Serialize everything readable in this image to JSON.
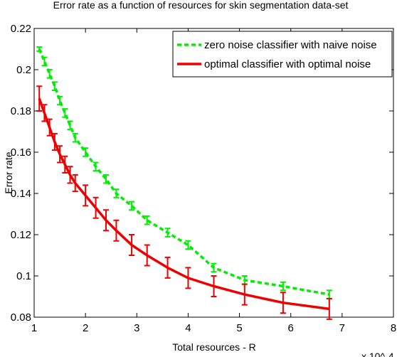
{
  "chart_data": {
    "type": "line",
    "title": "Error rate as a function of resources for skin segmentation data-set",
    "x_label": "Total resources - R",
    "y_label": "Error rate",
    "x_multiplier": "x 10^-4",
    "x": [
      1.1,
      1.2,
      1.3,
      1.4,
      1.5,
      1.6,
      1.7,
      1.8,
      2.0,
      2.2,
      2.4,
      2.6,
      2.9,
      3.2,
      3.6,
      4.0,
      4.5,
      5.1,
      5.85,
      6.75
    ],
    "series": [
      {
        "name": "zero noise classifier with naive noise",
        "color": "#00ee00",
        "dash": true,
        "values": [
          0.21,
          0.204,
          0.198,
          0.192,
          0.185,
          0.179,
          0.173,
          0.167,
          0.16,
          0.153,
          0.147,
          0.14,
          0.134,
          0.127,
          0.121,
          0.115,
          0.104,
          0.098,
          0.095,
          0.091
        ],
        "errors": [
          0.001,
          0.002,
          0.002,
          0.002,
          0.002,
          0.002,
          0.002,
          0.002,
          0.002,
          0.002,
          0.002,
          0.002,
          0.002,
          0.002,
          0.002,
          0.002,
          0.002,
          0.002,
          0.002,
          0.002
        ]
      },
      {
        "name": "optimal classifier with optimal noise",
        "color": "#ee0000",
        "dash": false,
        "values": [
          0.186,
          0.179,
          0.172,
          0.165,
          0.159,
          0.154,
          0.149,
          0.145,
          0.139,
          0.133,
          0.127,
          0.122,
          0.115,
          0.11,
          0.104,
          0.099,
          0.095,
          0.091,
          0.087,
          0.084
        ],
        "errors": [
          0.006,
          0.004,
          0.004,
          0.004,
          0.004,
          0.004,
          0.004,
          0.004,
          0.005,
          0.005,
          0.005,
          0.005,
          0.005,
          0.005,
          0.005,
          0.005,
          0.005,
          0.005,
          0.005,
          0.005
        ]
      }
    ],
    "xlim": [
      1,
      8
    ],
    "xticks": [
      1,
      2,
      3,
      4,
      5,
      6,
      7,
      8
    ],
    "ylim": [
      0.08,
      0.22
    ],
    "yticks": [
      0.08,
      {
        "value": 0.1,
        "label": "0.1"
      },
      0.12,
      0.14,
      0.16,
      0.18,
      {
        "value": 0.2,
        "label": "0.2"
      },
      0.22
    ],
    "legend": "upper right"
  }
}
